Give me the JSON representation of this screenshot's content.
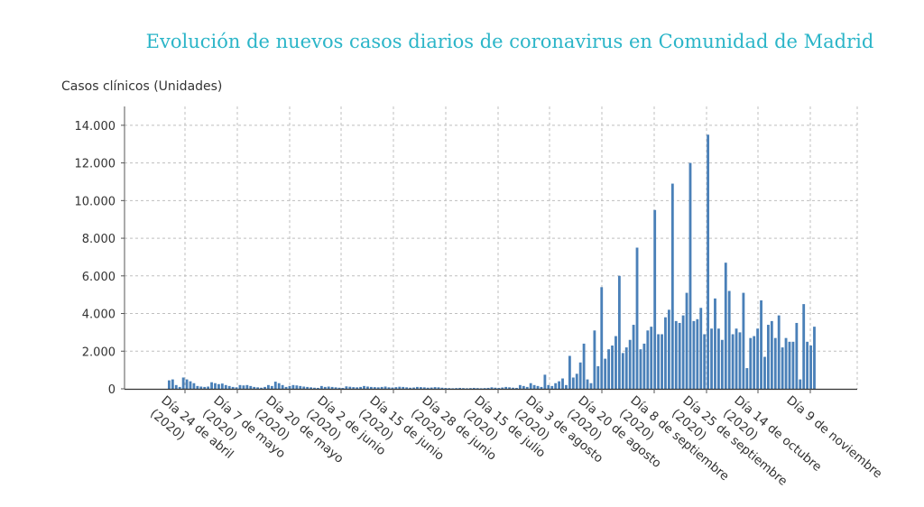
{
  "chart_data": {
    "type": "bar",
    "title": "Evolución de nuevos casos diarios de coronavirus en Comunidad de Madrid",
    "ylabel": "Casos clínicos (Unidades)",
    "ylim": [
      0,
      15000
    ],
    "yticks": [
      0,
      2000,
      4000,
      6000,
      8000,
      10000,
      12000,
      14000
    ],
    "ytick_labels": [
      "0",
      "2.000",
      "4.000",
      "6.000",
      "8.000",
      "10.000",
      "12.000",
      "14.000"
    ],
    "grid": true,
    "bar_color": "#4a80b8",
    "xtick_labels": [
      [
        "Día 24 de abril",
        "(2020)"
      ],
      [
        "Día 7 de mayo",
        "(2020)"
      ],
      [
        "Día 20 de mayo",
        "(2020)"
      ],
      [
        "Día 2 de junio",
        "(2020)"
      ],
      [
        "Día 15 de junio",
        "(2020)"
      ],
      [
        "Día 28 de junio",
        "(2020)"
      ],
      [
        "Día 15 de julio",
        "(2020)"
      ],
      [
        "Día 3 de agosto",
        "(2020)"
      ],
      [
        "Día 20 de agosto",
        "(2020)"
      ],
      [
        "Día 8 de septiembre",
        "(2020)"
      ],
      [
        "Día 25 de septiembre",
        "(2020)"
      ],
      [
        "Día 14 de octubre",
        "(2020)"
      ],
      [
        "Día 9 de noviembre",
        ""
      ]
    ],
    "values": [
      450,
      500,
      200,
      100,
      600,
      500,
      400,
      300,
      150,
      120,
      100,
      120,
      350,
      300,
      250,
      280,
      200,
      150,
      100,
      80,
      200,
      180,
      200,
      150,
      100,
      80,
      60,
      100,
      200,
      150,
      380,
      300,
      200,
      100,
      150,
      200,
      180,
      150,
      120,
      100,
      80,
      60,
      50,
      150,
      100,
      120,
      100,
      80,
      60,
      50,
      130,
      110,
      90,
      80,
      100,
      150,
      120,
      100,
      90,
      80,
      100,
      120,
      80,
      70,
      90,
      110,
      100,
      80,
      60,
      70,
      100,
      90,
      80,
      60,
      70,
      90,
      80,
      60,
      50,
      40,
      30,
      40,
      50,
      40,
      30,
      40,
      50,
      40,
      30,
      40,
      50,
      80,
      60,
      50,
      70,
      100,
      80,
      60,
      50,
      200,
      150,
      100,
      300,
      200,
      150,
      100,
      750,
      200,
      150,
      300,
      400,
      550,
      200,
      1750,
      600,
      800,
      1400,
      2400,
      500,
      300,
      3100,
      1200,
      5400,
      1600,
      2100,
      2300,
      2800,
      6000,
      1900,
      2200,
      2600,
      3400,
      7500,
      2100,
      2400,
      3100,
      3300,
      9500,
      2900,
      2900,
      3800,
      4200,
      10900,
      3600,
      3500,
      3900,
      5100,
      12000,
      3600,
      3700,
      4300,
      2900,
      13500,
      3200,
      4800,
      3200,
      2600,
      6700,
      5200,
      2900,
      3200,
      3000,
      5100,
      1100,
      2700,
      2800,
      3200,
      4700,
      1700,
      3400,
      3600,
      2700,
      3900,
      2200,
      2700,
      2500,
      2500,
      3500,
      500,
      4500,
      2500,
      2300,
      3300
    ]
  }
}
